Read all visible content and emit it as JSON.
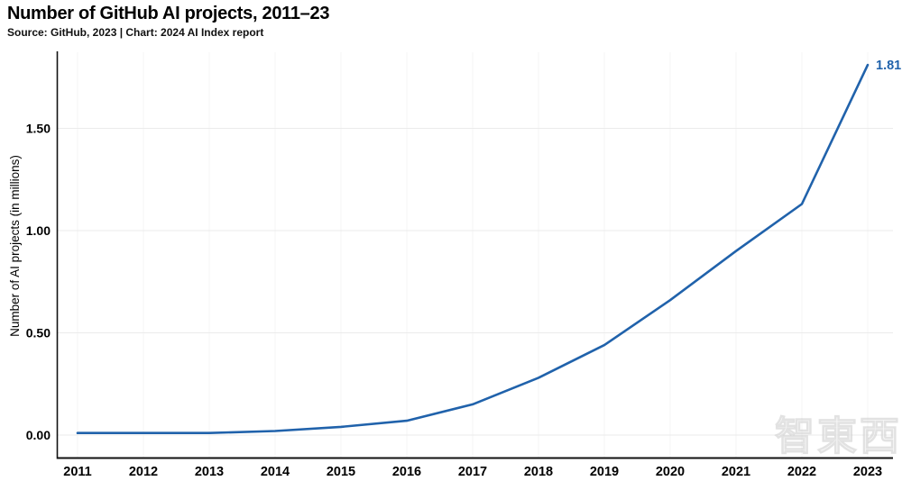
{
  "chart_data": {
    "type": "line",
    "title": "Number of GitHub AI projects, 2011–23",
    "source_line": "Source: GitHub, 2023 | Chart: 2024 AI Index report",
    "ylabel": "Number of AI projects (in millions)",
    "xlabel": "",
    "categories": [
      "2011",
      "2012",
      "2013",
      "2014",
      "2015",
      "2016",
      "2017",
      "2018",
      "2019",
      "2020",
      "2021",
      "2022",
      "2023"
    ],
    "series": [
      {
        "name": "Number of GitHub AI projects",
        "values": [
          0.01,
          0.01,
          0.01,
          0.02,
          0.04,
          0.07,
          0.15,
          0.28,
          0.44,
          0.66,
          0.9,
          1.13,
          1.81
        ]
      }
    ],
    "end_label": "1.81",
    "y_ticks": [
      "0.00",
      "0.50",
      "1.00",
      "1.50"
    ],
    "y_tick_values": [
      0,
      0.5,
      1.0,
      1.5
    ],
    "ylim": [
      0,
      1.87
    ],
    "grid": "on",
    "legend": "none",
    "line_color": "#2062ab",
    "axis_color": "#111111",
    "gridline_color": "#ebebeb"
  },
  "watermark": {
    "text": "智東西"
  }
}
